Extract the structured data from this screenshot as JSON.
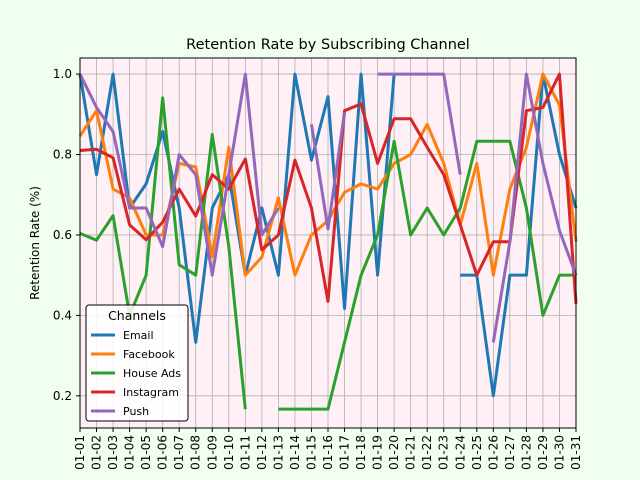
{
  "colors": {
    "figure_background": "#f0fff0",
    "plot_background": "#fff0f5",
    "grid": "#b0b0b0"
  },
  "chart_data": {
    "type": "line",
    "title": "Retention Rate by Subscribing Channel",
    "xlabel": "",
    "ylabel": "Retention Rate (%)",
    "ylim": [
      0.12,
      1.04
    ],
    "yticks": [
      0.2,
      0.4,
      0.6,
      0.8,
      1.0
    ],
    "ytick_labels": [
      "0.2",
      "0.4",
      "0.6",
      "0.8",
      "1.0"
    ],
    "grid": true,
    "legend": {
      "title": "Channels",
      "position": "lower-left"
    },
    "categories": [
      "01-01",
      "01-02",
      "01-03",
      "01-04",
      "01-05",
      "01-06",
      "01-07",
      "01-08",
      "01-09",
      "01-10",
      "01-11",
      "01-12",
      "01-13",
      "01-14",
      "01-15",
      "01-16",
      "01-17",
      "01-18",
      "01-19",
      "01-20",
      "01-21",
      "01-22",
      "01-23",
      "01-24",
      "01-25",
      "01-26",
      "01-27",
      "01-28",
      "01-29",
      "01-30",
      "01-31"
    ],
    "series": [
      {
        "name": "Email",
        "color": "#1f77b4",
        "values": [
          1.0,
          0.75,
          1.0,
          0.667,
          0.727,
          0.857,
          0.667,
          0.333,
          0.667,
          0.75,
          0.5,
          0.667,
          0.5,
          1.0,
          0.786,
          0.944,
          0.417,
          1.0,
          0.5,
          1.0,
          null,
          null,
          null,
          0.5,
          0.5,
          0.2,
          0.5,
          0.5,
          1.0,
          0.8,
          0.667
        ]
      },
      {
        "name": "Facebook",
        "color": "#ff7f0e",
        "values": [
          0.846,
          0.909,
          0.714,
          0.692,
          0.6,
          0.6,
          0.778,
          0.769,
          0.545,
          0.818,
          0.5,
          0.545,
          0.692,
          0.5,
          0.6,
          0.636,
          0.706,
          0.727,
          0.714,
          0.778,
          0.8,
          0.875,
          0.778,
          0.625,
          0.778,
          0.5,
          0.714,
          0.818,
          1.0,
          0.923,
          0.583
        ]
      },
      {
        "name": "House Ads",
        "color": "#2ca02c",
        "values": [
          0.604,
          0.587,
          0.648,
          0.4,
          0.5,
          0.941,
          0.526,
          0.5,
          0.85,
          0.571,
          0.167,
          null,
          0.167,
          0.167,
          0.167,
          0.167,
          0.333,
          0.5,
          0.6,
          0.833,
          0.6,
          0.667,
          0.6,
          0.667,
          0.833,
          0.833,
          0.833,
          0.667,
          0.4,
          0.5,
          0.5
        ]
      },
      {
        "name": "Instagram",
        "color": "#d62728",
        "values": [
          0.81,
          0.813,
          0.792,
          0.625,
          0.588,
          0.632,
          0.714,
          0.647,
          0.75,
          0.714,
          0.789,
          0.563,
          0.6,
          0.786,
          0.667,
          0.435,
          0.909,
          0.926,
          0.778,
          0.889,
          0.889,
          0.818,
          0.75,
          0.625,
          0.5,
          0.583,
          0.583,
          0.909,
          0.917,
          1.0,
          0.429
        ]
      },
      {
        "name": "Push",
        "color": "#9467bd",
        "values": [
          1.0,
          0.917,
          0.857,
          0.667,
          0.667,
          0.571,
          0.8,
          0.75,
          0.5,
          0.75,
          1.0,
          0.6,
          0.667,
          null,
          0.875,
          0.615,
          0.905,
          null,
          1.0,
          1.0,
          1.0,
          1.0,
          1.0,
          0.75,
          null,
          0.333,
          0.583,
          1.0,
          0.778,
          0.611,
          0.5
        ]
      }
    ]
  }
}
